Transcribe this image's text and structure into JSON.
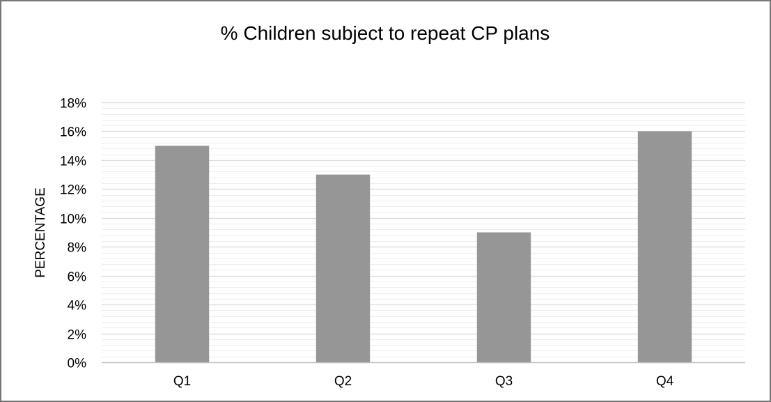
{
  "chart_data": {
    "type": "bar",
    "title": "% Children subject to repeat CP plans",
    "xlabel": "",
    "ylabel": "PERCENTAGE",
    "categories": [
      "Q1",
      "Q2",
      "Q3",
      "Q4"
    ],
    "values": [
      15,
      13,
      9,
      16
    ],
    "y_ticks": [
      "0%",
      "2%",
      "4%",
      "6%",
      "8%",
      "10%",
      "12%",
      "14%",
      "16%",
      "18%"
    ],
    "ylim": [
      0,
      18
    ],
    "minor_gridline_step": 0.4,
    "grid": true,
    "legend": "none",
    "colors": {
      "bar": "#969696",
      "major_grid": "#d9d9d9",
      "minor_grid": "#ececec",
      "axis": "#bfbfbf",
      "border": "#767676"
    }
  }
}
